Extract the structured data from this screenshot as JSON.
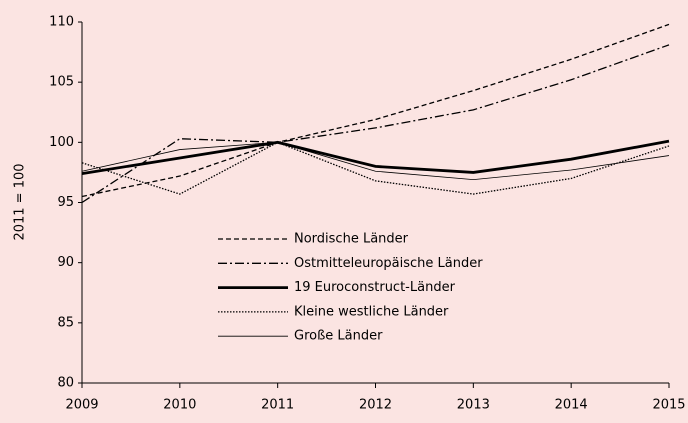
{
  "chart_data": {
    "type": "line",
    "y_label": "2011 = 100",
    "x": [
      2009,
      2010,
      2011,
      2012,
      2013,
      2014,
      2015
    ],
    "xlim": [
      2009,
      2015
    ],
    "xticks": [
      2009,
      2010,
      2011,
      2012,
      2013,
      2014,
      2015
    ],
    "ylim": [
      80,
      110
    ],
    "yticks": [
      80,
      85,
      90,
      95,
      100,
      105,
      110
    ],
    "grid": false,
    "series": [
      {
        "name": "Nordische Länder",
        "color": "#000000",
        "style": "dashed",
        "width": 1.3,
        "values": [
          95.5,
          97.2,
          100,
          101.9,
          104.3,
          106.9,
          109.8
        ]
      },
      {
        "name": "Ostmitteleuropäische Länder",
        "color": "#000000",
        "style": "dashdot",
        "width": 1.3,
        "values": [
          95.0,
          100.3,
          100,
          101.2,
          102.7,
          105.2,
          108.1
        ]
      },
      {
        "name": "19 Euroconstruct-Länder",
        "color": "#000000",
        "style": "solid",
        "width": 2.8,
        "values": [
          97.4,
          98.7,
          100,
          98.0,
          97.5,
          98.6,
          100.1
        ]
      },
      {
        "name": "Kleine westliche Länder",
        "color": "#000000",
        "style": "dotted",
        "width": 1.3,
        "values": [
          98.3,
          95.7,
          100,
          96.8,
          95.7,
          97.0,
          99.7
        ]
      },
      {
        "name": "Große Länder",
        "color": "#000000",
        "style": "solid",
        "width": 0.8,
        "values": [
          97.6,
          99.4,
          100,
          97.6,
          96.9,
          97.7,
          98.9
        ]
      }
    ]
  }
}
